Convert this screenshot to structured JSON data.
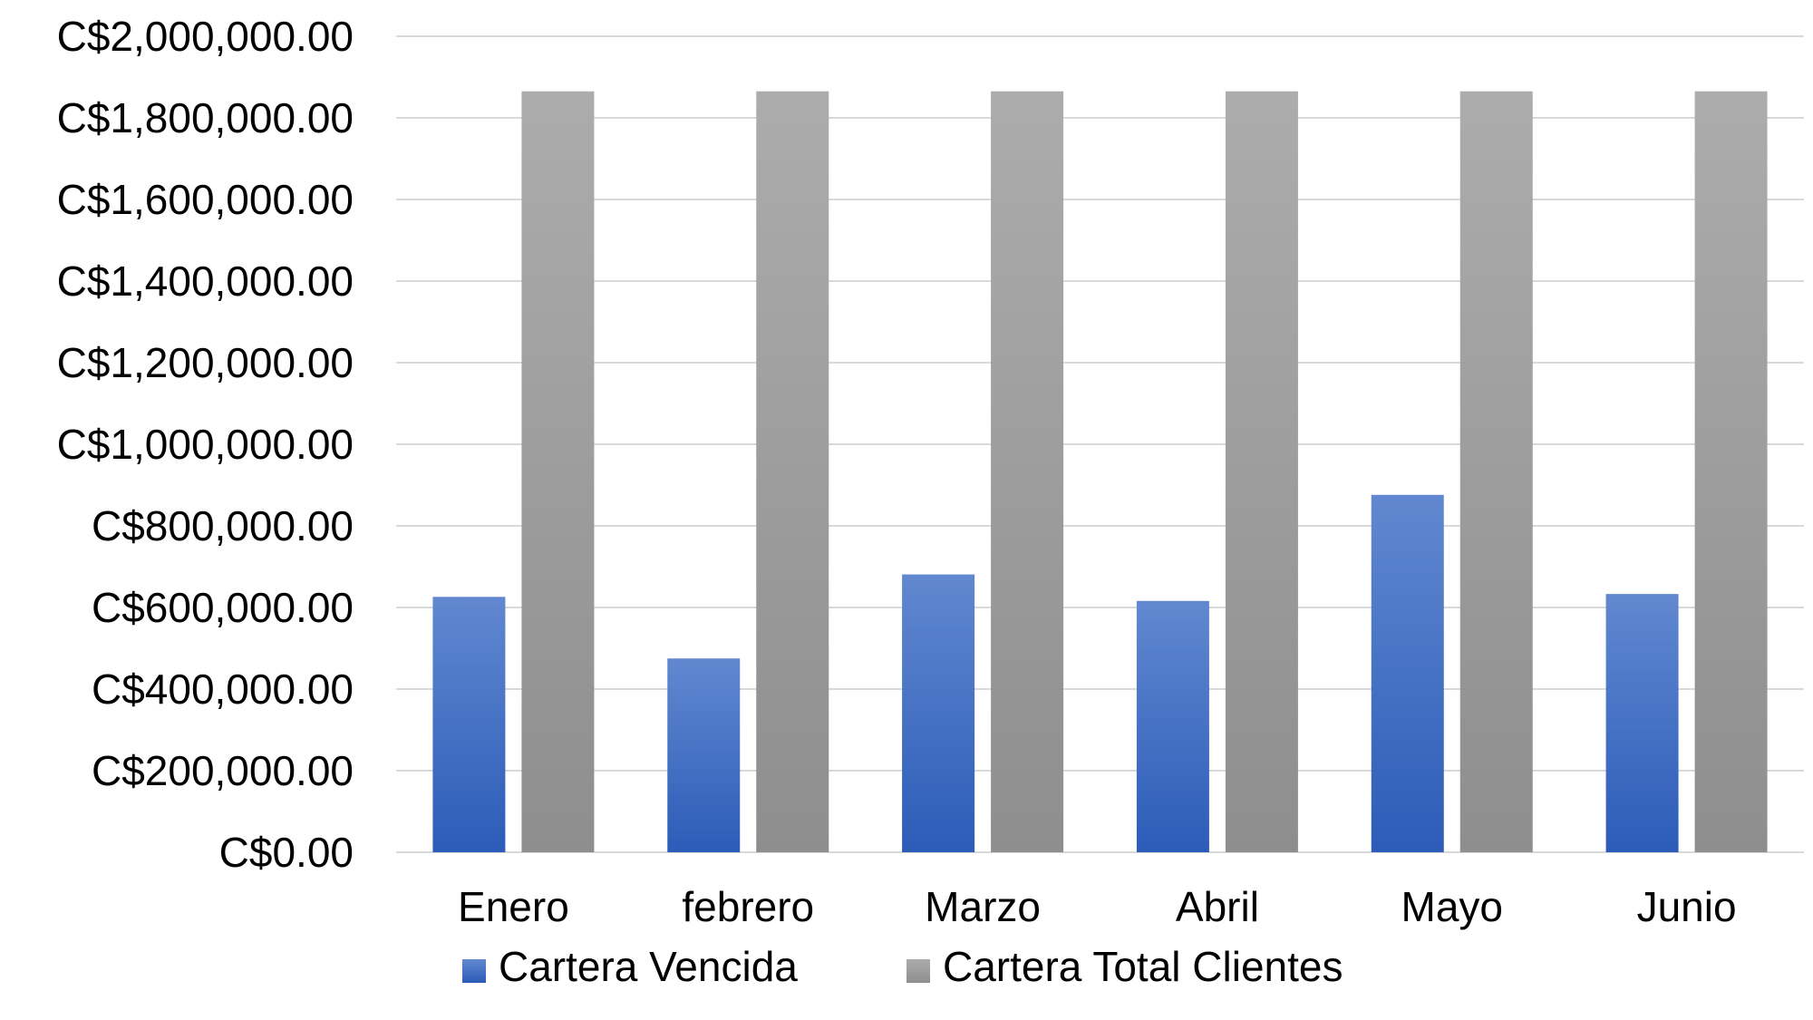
{
  "chart_data": {
    "type": "bar",
    "categories": [
      "Enero",
      "febrero",
      "Marzo",
      "Abril",
      "Mayo",
      "Junio"
    ],
    "series": [
      {
        "name": "Cartera Vencida",
        "values": [
          626000,
          475000,
          681000,
          616000,
          876000,
          633000
        ],
        "color": "#4472c4"
      },
      {
        "name": "Cartera Total Clientes",
        "values": [
          1865000,
          1865000,
          1865000,
          1865000,
          1865000,
          1865000
        ],
        "color": "#a5a5a5"
      }
    ],
    "ylim": [
      0,
      2000000
    ],
    "y_ticks": [
      {
        "value": 0,
        "label": "C$0.00"
      },
      {
        "value": 200000,
        "label": "C$200,000.00"
      },
      {
        "value": 400000,
        "label": "C$400,000.00"
      },
      {
        "value": 600000,
        "label": "C$600,000.00"
      },
      {
        "value": 800000,
        "label": "C$800,000.00"
      },
      {
        "value": 1000000,
        "label": "C$1,000,000.00"
      },
      {
        "value": 1200000,
        "label": "C$1,200,000.00"
      },
      {
        "value": 1400000,
        "label": "C$1,400,000.00"
      },
      {
        "value": 1600000,
        "label": "C$1,600,000.00"
      },
      {
        "value": 1800000,
        "label": "C$1,800,000.00"
      },
      {
        "value": 2000000,
        "label": "C$2,000,000.00"
      }
    ],
    "grid": true,
    "legend": "bottom"
  }
}
